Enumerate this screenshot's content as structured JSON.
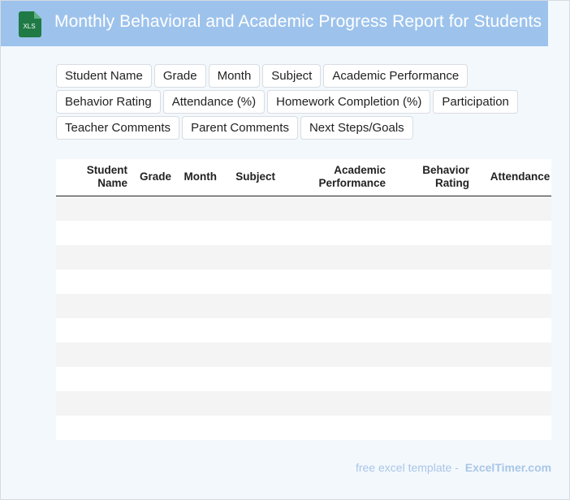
{
  "header": {
    "file_icon_label": "XLS",
    "title": "Monthly Behavioral and Academic Progress Report for Students"
  },
  "tags": [
    "Student Name",
    "Grade",
    "Month",
    "Subject",
    "Academic Performance",
    "Behavior Rating",
    "Attendance (%)",
    "Homework Completion (%)",
    "Participation",
    "Teacher Comments",
    "Parent Comments",
    "Next Steps/Goals"
  ],
  "table": {
    "columns": [
      "Student Name",
      "Grade",
      "Month",
      "Subject",
      "Academic Performance",
      "Behavior Rating",
      "Attendance (%)"
    ],
    "empty_row_count": 10
  },
  "footer": {
    "prefix": "free excel template -",
    "brand": "ExcelTimer.com"
  },
  "colors": {
    "header_bg": "#9dc3ec",
    "page_bg": "#f3f8fd",
    "icon_green": "#1f7a45",
    "stripe": "#f4f4f4",
    "footer_text": "#a9c6e6"
  }
}
